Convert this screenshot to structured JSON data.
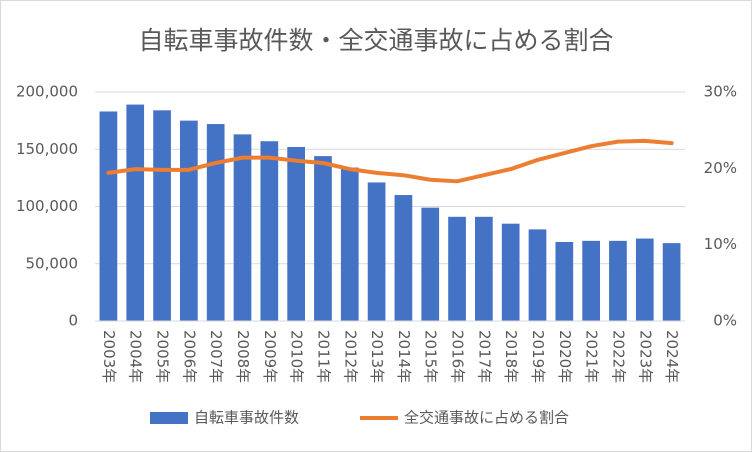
{
  "chart_data": {
    "type": "bar",
    "title": "自転車事故件数・全交通事故に占める割合",
    "categories": [
      "2003年",
      "2004年",
      "2005年",
      "2006年",
      "2007年",
      "2008年",
      "2009年",
      "2010年",
      "2011年",
      "2012年",
      "2013年",
      "2014年",
      "2015年",
      "2016年",
      "2017年",
      "2018年",
      "2019年",
      "2020年",
      "2021年",
      "2022年",
      "2023年",
      "2024年"
    ],
    "series": [
      {
        "name": "自転車事故件数",
        "type": "bar",
        "color": "#4472c4",
        "values": [
          183000,
          189000,
          184000,
          175000,
          172000,
          163000,
          157000,
          152000,
          144000,
          134000,
          121000,
          110000,
          99000,
          91000,
          91000,
          85000,
          80000,
          69000,
          70000,
          70000,
          72000,
          68000
        ]
      },
      {
        "name": "全交通事故に占める割合",
        "type": "line",
        "axis": "y2",
        "color": "#ed7d31",
        "values": [
          19.4,
          19.9,
          19.8,
          19.8,
          20.7,
          21.4,
          21.4,
          21.0,
          20.7,
          19.9,
          19.4,
          19.1,
          18.5,
          18.3,
          19.1,
          19.9,
          21.1,
          22.0,
          22.9,
          23.5,
          23.6,
          23.3
        ]
      }
    ],
    "ylim": [
      0,
      200000
    ],
    "yticks": [
      0,
      {
        "value": 50000,
        "label": "50,000"
      },
      {
        "value": 100000,
        "label": "100,000"
      },
      {
        "value": 150000,
        "label": "150,000"
      },
      {
        "value": 200000,
        "label": "200,000"
      }
    ],
    "y2lim": [
      0,
      30
    ],
    "y2ticks": [
      {
        "value": 0,
        "label": "0%"
      },
      {
        "value": 10,
        "label": "10%"
      },
      {
        "value": 20,
        "label": "20%"
      },
      {
        "value": 30,
        "label": "30%"
      }
    ],
    "grid": true,
    "legend": "bottom"
  }
}
